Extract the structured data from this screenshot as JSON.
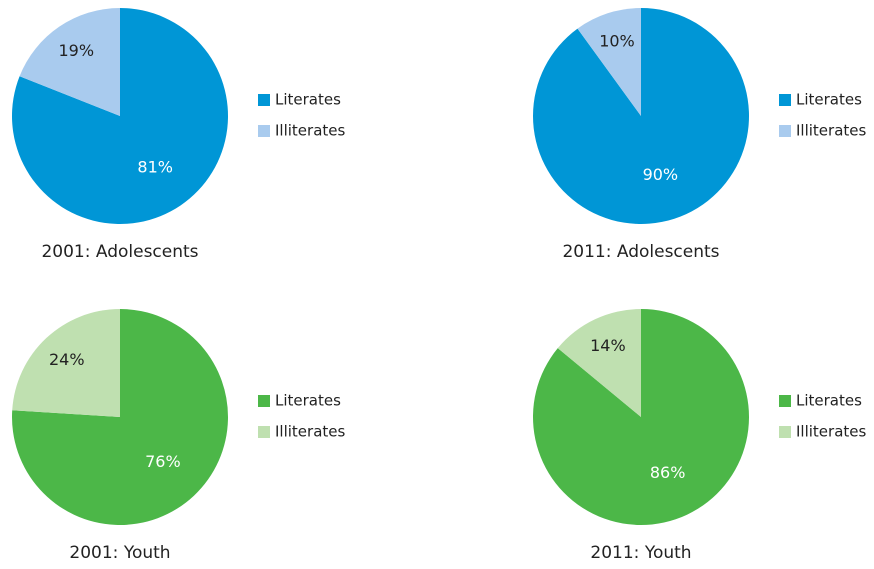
{
  "chart_data": [
    {
      "type": "pie",
      "title": "2001: Adolescents",
      "categories": [
        "Literates",
        "Illiterates"
      ],
      "values": [
        81,
        19
      ],
      "value_labels": [
        "81%",
        "19%"
      ],
      "colors": [
        "#0096d6",
        "#a9cbee"
      ]
    },
    {
      "type": "pie",
      "title": "2011: Adolescents",
      "categories": [
        "Literates",
        "Illiterates"
      ],
      "values": [
        90,
        10
      ],
      "value_labels": [
        "90%",
        "10%"
      ],
      "colors": [
        "#0096d6",
        "#a9cbee"
      ]
    },
    {
      "type": "pie",
      "title": "2001: Youth",
      "categories": [
        "Literates",
        "Illiterates"
      ],
      "values": [
        76,
        24
      ],
      "value_labels": [
        "76%",
        "24%"
      ],
      "colors": [
        "#4cb748",
        "#bfe0b0"
      ]
    },
    {
      "type": "pie",
      "title": "2011: Youth",
      "categories": [
        "Literates",
        "Illiterates"
      ],
      "values": [
        86,
        14
      ],
      "value_labels": [
        "86%",
        "14%"
      ],
      "colors": [
        "#4cb748",
        "#bfe0b0"
      ]
    }
  ]
}
